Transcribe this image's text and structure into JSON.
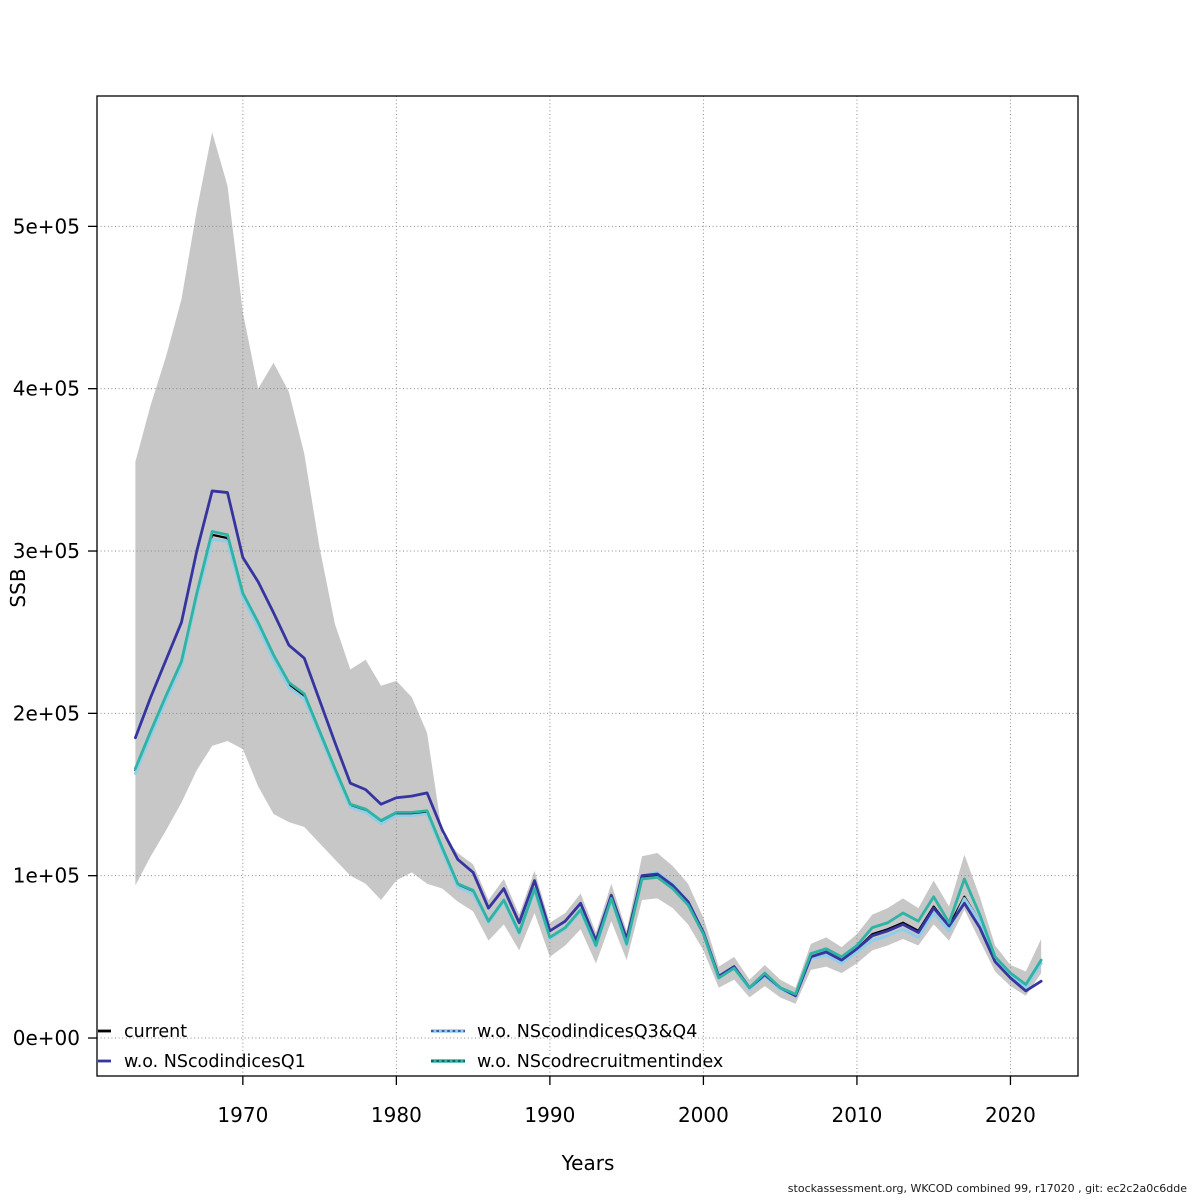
{
  "footer": "stockassessment.org, WKCOD  combined  99, r17020 , git: ec2c2a0c6dde",
  "colors": {
    "background": "#FFFFFF",
    "band": "#C7C7C7",
    "grid": "#8A8A8A",
    "axis": "#000000",
    "current": "#000000",
    "wo_q1": "#36359F",
    "wo_q3q4": "#8FCEEA",
    "wo_recruitment": "#2FB3A3"
  },
  "chart_data": {
    "type": "line",
    "title": "",
    "xlabel": "Years",
    "ylabel": "SSB",
    "grid": true,
    "legend_position": "bottom-left, two columns, no frame",
    "xlim": [
      1960.5,
      2024.4
    ],
    "ylim": [
      -23400,
      580300
    ],
    "x_ticks": {
      "values": [
        1970,
        1980,
        1990,
        2000,
        2010,
        2020
      ],
      "labels": [
        "1970",
        "1980",
        "1990",
        "2000",
        "2010",
        "2020"
      ]
    },
    "y_ticks": {
      "values": [
        0,
        100000,
        200000,
        300000,
        400000,
        500000
      ],
      "labels": [
        "0e+00",
        "1e+05",
        "2e+05",
        "3e+05",
        "4e+05",
        "5e+05"
      ]
    },
    "x": [
      1963,
      1964,
      1965,
      1966,
      1967,
      1968,
      1969,
      1970,
      1971,
      1972,
      1973,
      1974,
      1975,
      1976,
      1977,
      1978,
      1979,
      1980,
      1981,
      1982,
      1983,
      1984,
      1985,
      1986,
      1987,
      1988,
      1989,
      1990,
      1991,
      1992,
      1993,
      1994,
      1995,
      1996,
      1997,
      1998,
      1999,
      2000,
      2001,
      2002,
      2003,
      2004,
      2005,
      2006,
      2007,
      2008,
      2009,
      2010,
      2011,
      2012,
      2013,
      2014,
      2015,
      2016,
      2017,
      2018,
      2019,
      2020,
      2021,
      2022
    ],
    "band": {
      "description": "grey confidence region around current run",
      "color": "#C7C7C7",
      "high": [
        355000,
        390000,
        420000,
        455000,
        510000,
        558000,
        525000,
        447000,
        400000,
        416000,
        398000,
        360000,
        302000,
        255000,
        227000,
        233000,
        217000,
        220000,
        210000,
        188000,
        125000,
        114000,
        107000,
        85000,
        98000,
        76000,
        103000,
        71000,
        77000,
        89000,
        65000,
        95000,
        66000,
        112000,
        114000,
        106000,
        95000,
        74000,
        44000,
        50000,
        36000,
        45000,
        36000,
        31000,
        58000,
        62000,
        56000,
        64000,
        76000,
        80000,
        86000,
        80000,
        97000,
        81000,
        113000,
        87000,
        57000,
        45000,
        41000,
        61000
      ],
      "low": [
        94000,
        112000,
        128000,
        145000,
        165000,
        180000,
        183000,
        178000,
        155000,
        138000,
        133000,
        130000,
        120000,
        110000,
        100000,
        95000,
        85000,
        97000,
        102000,
        95000,
        92000,
        84000,
        78000,
        60000,
        70000,
        54000,
        77000,
        50000,
        57000,
        67000,
        46000,
        72000,
        48000,
        85000,
        86000,
        80000,
        70000,
        54000,
        31000,
        36000,
        25000,
        32000,
        25000,
        21000,
        42000,
        44000,
        40000,
        46000,
        54000,
        57000,
        61000,
        57000,
        70000,
        60000,
        79000,
        60000,
        41000,
        32000,
        26000,
        40000
      ]
    },
    "series": [
      {
        "name": "current",
        "color": "#000000",
        "key_style": "solid-short",
        "values": [
          165000,
          188000,
          210000,
          231000,
          273000,
          310000,
          308000,
          273000,
          255000,
          235000,
          218000,
          211000,
          188000,
          165000,
          143000,
          140000,
          133000,
          138000,
          138000,
          139000,
          116000,
          94000,
          90000,
          72000,
          85000,
          65000,
          92000,
          62000,
          68000,
          79000,
          57000,
          86000,
          58000,
          99000,
          100000,
          93000,
          83000,
          64000,
          37000,
          43000,
          31000,
          39000,
          31000,
          26000,
          50000,
          53000,
          48000,
          55000,
          64000,
          67000,
          71000,
          66000,
          81000,
          69000,
          87000,
          72000,
          48000,
          38000,
          31000,
          46000
        ]
      },
      {
        "name": "w.o. NScodindicesQ1",
        "color": "#36359F",
        "key_style": "solid-short",
        "values": [
          185000,
          210000,
          233000,
          256000,
          300000,
          337000,
          336000,
          296000,
          281000,
          262000,
          242000,
          234000,
          208000,
          182000,
          157000,
          153000,
          144000,
          148000,
          149000,
          151000,
          128000,
          110000,
          102000,
          80000,
          92000,
          71000,
          97000,
          66000,
          72000,
          83000,
          60000,
          88000,
          61000,
          100000,
          101000,
          94000,
          84000,
          65000,
          38000,
          44000,
          31000,
          39000,
          31000,
          26000,
          50000,
          53000,
          48000,
          55000,
          63000,
          66000,
          70000,
          65000,
          80000,
          69000,
          83000,
          68000,
          47000,
          37000,
          29000,
          35000
        ]
      },
      {
        "name": "w.o. NScodindicesQ3&Q4",
        "color": "#8FCEEA",
        "key_dash_color": "#2B2E83",
        "key_style": "dashed-long",
        "values": [
          163000,
          186000,
          208000,
          229000,
          271000,
          307000,
          306000,
          271000,
          253000,
          233000,
          216000,
          209000,
          187000,
          164000,
          142000,
          139000,
          132000,
          137000,
          137000,
          138000,
          115000,
          93000,
          89000,
          71000,
          84000,
          64000,
          91000,
          61000,
          67000,
          78000,
          56000,
          85000,
          57000,
          100000,
          102000,
          95000,
          84000,
          65000,
          37000,
          43000,
          30000,
          38000,
          30000,
          26000,
          49000,
          51000,
          46000,
          53000,
          60000,
          63000,
          67000,
          62000,
          77000,
          66000,
          86000,
          72000,
          48000,
          38000,
          31000,
          46000
        ]
      },
      {
        "name": "w.o. NScodrecruitmentindex",
        "color": "#2FB3A3",
        "key_dash_color": "#17403A",
        "key_style": "dashed-long",
        "values": [
          166000,
          189000,
          211000,
          232000,
          274000,
          312000,
          310000,
          274000,
          256000,
          236000,
          219000,
          212000,
          189000,
          166000,
          144000,
          141000,
          134000,
          139000,
          139000,
          140000,
          117000,
          95000,
          91000,
          72000,
          85000,
          65000,
          92000,
          62000,
          68000,
          79000,
          57000,
          86000,
          58000,
          98000,
          99000,
          92000,
          82000,
          64000,
          37000,
          43000,
          31000,
          40000,
          31000,
          27000,
          52000,
          55000,
          50000,
          57000,
          68000,
          71000,
          77000,
          72000,
          87000,
          71000,
          98000,
          76000,
          50000,
          40000,
          33000,
          48000
        ]
      }
    ]
  }
}
